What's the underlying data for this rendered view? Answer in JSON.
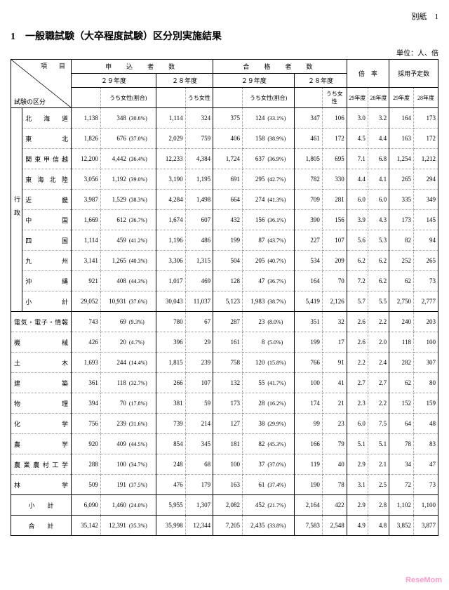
{
  "header_right": "別紙　1",
  "title": "1　一般職試験（大卒程度試験）区分別実施結果",
  "unit": "単位：人、倍",
  "colhead": {
    "item": "項　目",
    "category": "試験の区分",
    "applicants": "申　込　者　数",
    "passers": "合　格　者　数",
    "ratio": "倍　率",
    "planned": "採用予定数",
    "y29": "２９年度",
    "y28": "２８年度",
    "female_pct": "うち女性(割合)",
    "female": "うち女性",
    "s29": "29年度",
    "s28": "28年度"
  },
  "side_label": "行政",
  "rows_admin": [
    {
      "label": "北海道",
      "a29": 1138,
      "a29f": 348,
      "a29p": "(30.6%)",
      "a28": 1114,
      "a28f": 324,
      "p29": 375,
      "p29f": 124,
      "p29p": "(33.1%)",
      "p28": 347,
      "p28f": 106,
      "r29": "3.0",
      "r28": "3.2",
      "h29": 164,
      "h28": 173
    },
    {
      "label": "東北",
      "a29": 1826,
      "a29f": 676,
      "a29p": "(37.0%)",
      "a28": 2029,
      "a28f": 759,
      "p29": 406,
      "p29f": 158,
      "p29p": "(38.9%)",
      "p28": 461,
      "p28f": 172,
      "r29": "4.5",
      "r28": "4.4",
      "h29": 163,
      "h28": 172
    },
    {
      "label": "関東甲信越",
      "a29": 12200,
      "a29f": 4442,
      "a29p": "(36.4%)",
      "a28": 12233,
      "a28f": 4384,
      "p29": 1724,
      "p29f": 637,
      "p29p": "(36.9%)",
      "p28": 1805,
      "p28f": 695,
      "r29": "7.1",
      "r28": "6.8",
      "h29": 1254,
      "h28": 1212
    },
    {
      "label": "東海北陸",
      "a29": 3056,
      "a29f": 1192,
      "a29p": "(39.0%)",
      "a28": 3190,
      "a28f": 1195,
      "p29": 691,
      "p29f": 295,
      "p29p": "(42.7%)",
      "p28": 782,
      "p28f": 330,
      "r29": "4.4",
      "r28": "4.1",
      "h29": 265,
      "h28": 294
    },
    {
      "label": "近畿",
      "a29": 3987,
      "a29f": 1529,
      "a29p": "(38.3%)",
      "a28": 4284,
      "a28f": 1498,
      "p29": 664,
      "p29f": 274,
      "p29p": "(41.3%)",
      "p28": 709,
      "p28f": 281,
      "r29": "6.0",
      "r28": "6.0",
      "h29": 335,
      "h28": 349
    },
    {
      "label": "中国",
      "a29": 1669,
      "a29f": 612,
      "a29p": "(36.7%)",
      "a28": 1674,
      "a28f": 607,
      "p29": 432,
      "p29f": 156,
      "p29p": "(36.1%)",
      "p28": 390,
      "p28f": 156,
      "r29": "3.9",
      "r28": "4.3",
      "h29": 173,
      "h28": 145
    },
    {
      "label": "四国",
      "a29": 1114,
      "a29f": 459,
      "a29p": "(41.2%)",
      "a28": 1196,
      "a28f": 486,
      "p29": 199,
      "p29f": 87,
      "p29p": "(43.7%)",
      "p28": 227,
      "p28f": 107,
      "r29": "5.6",
      "r28": "5.3",
      "h29": 82,
      "h28": 94
    },
    {
      "label": "九州",
      "a29": 3141,
      "a29f": 1265,
      "a29p": "(40.3%)",
      "a28": 3306,
      "a28f": 1315,
      "p29": 504,
      "p29f": 205,
      "p29p": "(40.7%)",
      "p28": 534,
      "p28f": 209,
      "r29": "6.2",
      "r28": "6.2",
      "h29": 252,
      "h28": 265
    },
    {
      "label": "沖縄",
      "a29": 921,
      "a29f": 408,
      "a29p": "(44.3%)",
      "a28": 1017,
      "a28f": 469,
      "p29": 128,
      "p29f": 47,
      "p29p": "(36.7%)",
      "p28": 164,
      "p28f": 70,
      "r29": "7.2",
      "r28": "6.2",
      "h29": 62,
      "h28": 73
    }
  ],
  "admin_subtotal": {
    "label": "小　計",
    "a29": 29052,
    "a29f": 10931,
    "a29p": "(37.6%)",
    "a28": 30043,
    "a28f": 11037,
    "p29": 5123,
    "p29f": 1983,
    "p29p": "(38.7%)",
    "p28": 5419,
    "p28f": 2126,
    "r29": "5.7",
    "r28": "5.5",
    "h29": 2750,
    "h28": 2777
  },
  "rows_tech": [
    {
      "label": "電気・電子・情報",
      "a29": 743,
      "a29f": 69,
      "a29p": "(9.3%)",
      "a28": 780,
      "a28f": 67,
      "p29": 287,
      "p29f": 23,
      "p29p": "(8.0%)",
      "p28": 351,
      "p28f": 32,
      "r29": "2.6",
      "r28": "2.2",
      "h29": 240,
      "h28": 203
    },
    {
      "label": "機械",
      "a29": 426,
      "a29f": 20,
      "a29p": "(4.7%)",
      "a28": 396,
      "a28f": 29,
      "p29": 161,
      "p29f": 8,
      "p29p": "(5.0%)",
      "p28": 199,
      "p28f": 17,
      "r29": "2.6",
      "r28": "2.0",
      "h29": 118,
      "h28": 100
    },
    {
      "label": "土木",
      "a29": 1693,
      "a29f": 244,
      "a29p": "(14.4%)",
      "a28": 1815,
      "a28f": 239,
      "p29": 758,
      "p29f": 120,
      "p29p": "(15.8%)",
      "p28": 766,
      "p28f": 91,
      "r29": "2.2",
      "r28": "2.4",
      "h29": 282,
      "h28": 307
    },
    {
      "label": "建築",
      "a29": 361,
      "a29f": 118,
      "a29p": "(32.7%)",
      "a28": 266,
      "a28f": 107,
      "p29": 132,
      "p29f": 55,
      "p29p": "(41.7%)",
      "p28": 100,
      "p28f": 41,
      "r29": "2.7",
      "r28": "2.7",
      "h29": 62,
      "h28": 80
    },
    {
      "label": "物理",
      "a29": 394,
      "a29f": 70,
      "a29p": "(17.8%)",
      "a28": 381,
      "a28f": 59,
      "p29": 173,
      "p29f": 28,
      "p29p": "(16.2%)",
      "p28": 174,
      "p28f": 21,
      "r29": "2.3",
      "r28": "2.2",
      "h29": 152,
      "h28": 159
    },
    {
      "label": "化学",
      "a29": 756,
      "a29f": 239,
      "a29p": "(31.6%)",
      "a28": 739,
      "a28f": 214,
      "p29": 127,
      "p29f": 38,
      "p29p": "(29.9%)",
      "p28": 99,
      "p28f": 23,
      "r29": "6.0",
      "r28": "7.5",
      "h29": 64,
      "h28": 48
    },
    {
      "label": "農学",
      "a29": 920,
      "a29f": 409,
      "a29p": "(44.5%)",
      "a28": 854,
      "a28f": 345,
      "p29": 181,
      "p29f": 82,
      "p29p": "(45.3%)",
      "p28": 166,
      "p28f": 79,
      "r29": "5.1",
      "r28": "5.1",
      "h29": 78,
      "h28": 83
    },
    {
      "label": "農業農村工学",
      "a29": 288,
      "a29f": 100,
      "a29p": "(34.7%)",
      "a28": 248,
      "a28f": 68,
      "p29": 100,
      "p29f": 37,
      "p29p": "(37.0%)",
      "p28": 119,
      "p28f": 40,
      "r29": "2.9",
      "r28": "2.1",
      "h29": 34,
      "h28": 47
    },
    {
      "label": "林学",
      "a29": 509,
      "a29f": 191,
      "a29p": "(37.5%)",
      "a28": 476,
      "a28f": 179,
      "p29": 163,
      "p29f": 61,
      "p29p": "(37.4%)",
      "p28": 190,
      "p28f": 78,
      "r29": "3.1",
      "r28": "2.5",
      "h29": 72,
      "h28": 73
    }
  ],
  "tech_subtotal": {
    "label": "小　　計",
    "a29": 6090,
    "a29f": 1460,
    "a29p": "(24.0%)",
    "a28": 5955,
    "a28f": 1307,
    "p29": 2082,
    "p29f": 452,
    "p29p": "(21.7%)",
    "p28": 2164,
    "p28f": 422,
    "r29": "2.9",
    "r28": "2.8",
    "h29": 1102,
    "h28": 1100
  },
  "total": {
    "label": "合　　計",
    "a29": 35142,
    "a29f": 12391,
    "a29p": "(35.3%)",
    "a28": 35998,
    "a28f": 12344,
    "p29": 7205,
    "p29f": 2435,
    "p29p": "(33.8%)",
    "p28": 7583,
    "p28f": 2548,
    "r29": "4.9",
    "r28": "4.8",
    "h29": 3852,
    "h28": 3877
  },
  "watermark": "ReseMom"
}
